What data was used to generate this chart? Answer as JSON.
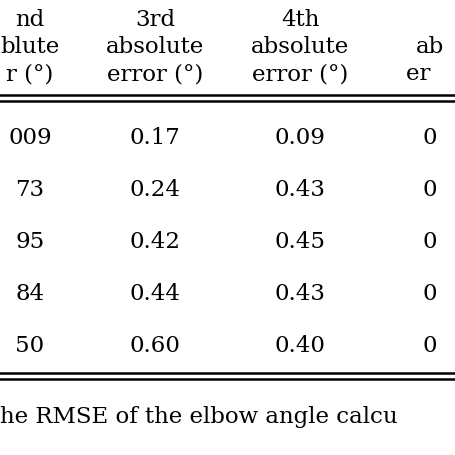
{
  "col1_header": [
    "nd",
    "blute",
    "r (°)"
  ],
  "col2_header": [
    "3rd",
    "absolute",
    "error (°)"
  ],
  "col3_header": [
    "4th",
    "absolute",
    "error (°)"
  ],
  "col4_header": [
    "ab",
    "er "
  ],
  "col1_data": [
    "009",
    "73",
    "95",
    "84",
    "50"
  ],
  "col2_data": [
    "0.17",
    "0.24",
    "0.42",
    "0.44",
    "0.60"
  ],
  "col3_data": [
    "0.09",
    "0.43",
    "0.45",
    "0.43",
    "0.40"
  ],
  "col4_data": [
    "0",
    "0",
    "0",
    "0",
    "0"
  ],
  "footer_text": "he RMSE of the elbow angle calcu",
  "bg_color": "#ffffff",
  "line_color": "#000000",
  "text_color": "#000000",
  "font_size": 16.5
}
